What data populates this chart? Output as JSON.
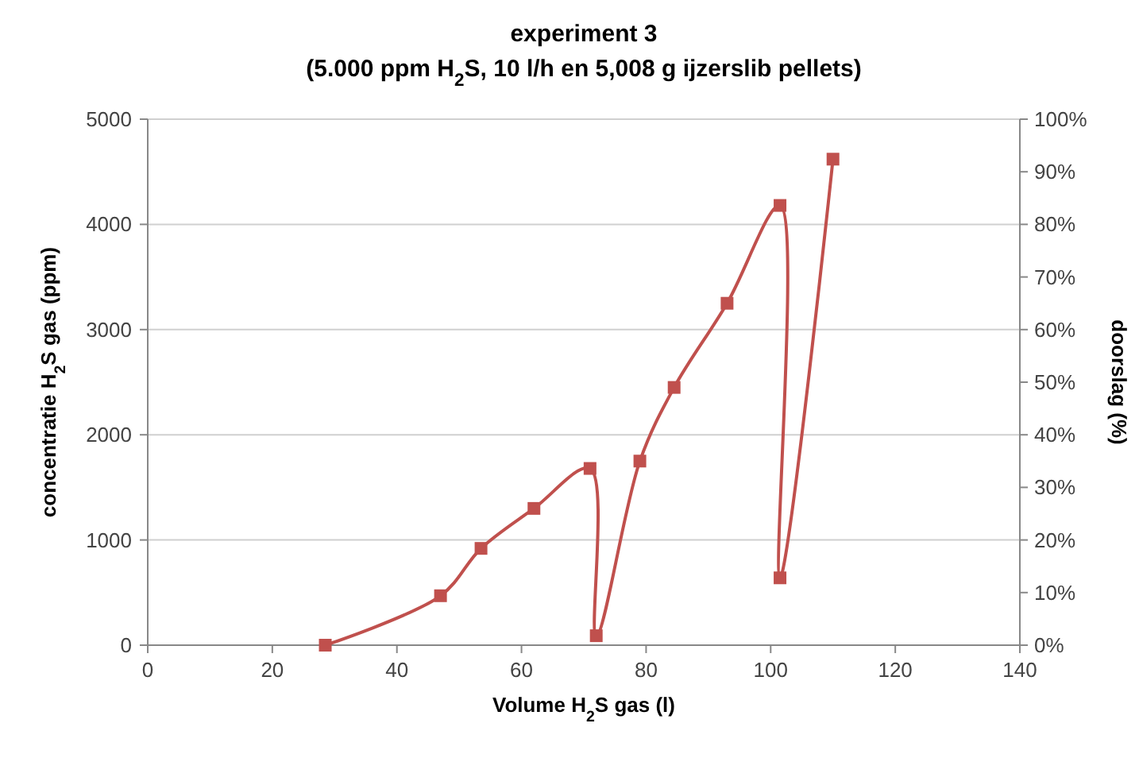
{
  "chart_data": {
    "type": "line",
    "title": "experiment 3\n(5.000 ppm H$_{2}$S, 10 l/h en 5,008 g ijzerslib pellets)",
    "xlabel": "Volume H$_{2}$S gas (l)",
    "ylabel": "concentratie H$_{2}$S gas (ppm)",
    "y2label": "doorslag (%)",
    "x": [
      28.5,
      47,
      53.5,
      62,
      71,
      72,
      79,
      84.5,
      93,
      101.5,
      101.5,
      110
    ],
    "series": [
      {
        "color": "#c0504d",
        "values": [
          0,
          470,
          920,
          1300,
          1680,
          90,
          1750,
          2450,
          3250,
          4180,
          640,
          4620
        ]
      }
    ],
    "xlim": [
      0,
      140
    ],
    "xticks": [
      0,
      20,
      40,
      60,
      80,
      100,
      120,
      140
    ],
    "ylim": [
      0,
      5000
    ],
    "yticks": [
      0,
      1000,
      2000,
      3000,
      4000,
      5000
    ],
    "y2lim": [
      0,
      100
    ],
    "y2ticks": [
      {
        "value": 0,
        "label": "0%"
      },
      {
        "value": 10,
        "label": "10%"
      },
      {
        "value": 20,
        "label": "20%"
      },
      {
        "value": 30,
        "label": "30%"
      },
      {
        "value": 40,
        "label": "40%"
      },
      {
        "value": 50,
        "label": "50%"
      },
      {
        "value": 60,
        "label": "60%"
      },
      {
        "value": 70,
        "label": "70%"
      },
      {
        "value": 80,
        "label": "80%"
      },
      {
        "value": 90,
        "label": "90%"
      },
      {
        "value": 100,
        "label": "100%"
      }
    ],
    "grid": "y",
    "marker": "square",
    "line_style": "solid"
  }
}
